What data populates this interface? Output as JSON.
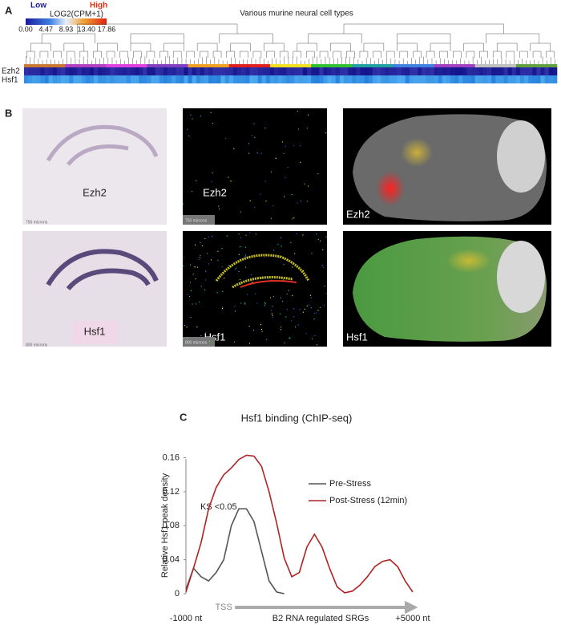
{
  "panel_a": {
    "label": "A",
    "legend": {
      "low": "Low",
      "high": "High",
      "title": "LOG2(CPM+1)",
      "ticks": [
        "0.00",
        "4.47",
        "8.93",
        "13.40",
        "17.86"
      ]
    },
    "title": "Various murine neural cell types",
    "rows": [
      "Ezh2",
      "Hsf1"
    ]
  },
  "panel_b": {
    "label": "B",
    "images": [
      {
        "caption": "Ezh2",
        "scale": "750 microns"
      },
      {
        "caption": "Ezh2",
        "scale": "750 microns"
      },
      {
        "caption": "Ezh2"
      },
      {
        "caption": "Hsf1",
        "scale": "800 microns"
      },
      {
        "caption": "Hsf1",
        "scale": "800 microns"
      },
      {
        "caption": "Hsf1"
      }
    ]
  },
  "panel_c": {
    "label": "C"
  },
  "chart_data": {
    "type": "line",
    "title": "Hsf1 binding (ChIP-seq)",
    "ylabel": "Relative Hsf1 peak density",
    "annotation": "KS <0.05",
    "x_axis_label": "B2 RNA regulated SRGs",
    "x": [
      -1000,
      -800,
      -600,
      -400,
      -200,
      0,
      200,
      400,
      600,
      800,
      1000,
      1200,
      1400,
      1600,
      1800,
      2000,
      2200,
      2400,
      2600,
      2800,
      3000,
      3200,
      3400,
      3600,
      3800,
      4000,
      4200,
      4400,
      4600,
      4800,
      5000
    ],
    "xlim": [
      -1000,
      5000
    ],
    "xticks": [
      {
        "value": -1000,
        "label": "-1000 nt"
      },
      {
        "value": 0,
        "label": "TSS"
      },
      {
        "value": 5000,
        "label": "+5000 nt"
      }
    ],
    "ylim": [
      0,
      0.17
    ],
    "yticks": [
      0,
      0.04,
      0.08,
      0.12,
      0.16
    ],
    "series": [
      {
        "name": "Pre-Stress",
        "color": "#555555",
        "values": [
          0.005,
          0.03,
          0.02,
          0.015,
          0.025,
          0.04,
          0.08,
          0.1,
          0.1,
          0.085,
          0.05,
          0.015,
          0.002,
          0,
          null,
          null,
          null,
          null,
          null,
          null,
          null,
          null,
          null,
          null,
          null,
          null,
          null,
          null,
          null,
          null,
          null
        ]
      },
      {
        "name": "Post-Stress (12min)",
        "color": "#b22222",
        "values": [
          0.002,
          0.03,
          0.06,
          0.1,
          0.125,
          0.14,
          0.148,
          0.158,
          0.163,
          0.162,
          0.15,
          0.12,
          0.083,
          0.042,
          0.02,
          0.025,
          0.055,
          0.07,
          0.055,
          0.03,
          0.008,
          0.001,
          0.003,
          0.01,
          0.02,
          0.032,
          0.038,
          0.04,
          0.032,
          0.015,
          0.002
        ]
      }
    ]
  }
}
